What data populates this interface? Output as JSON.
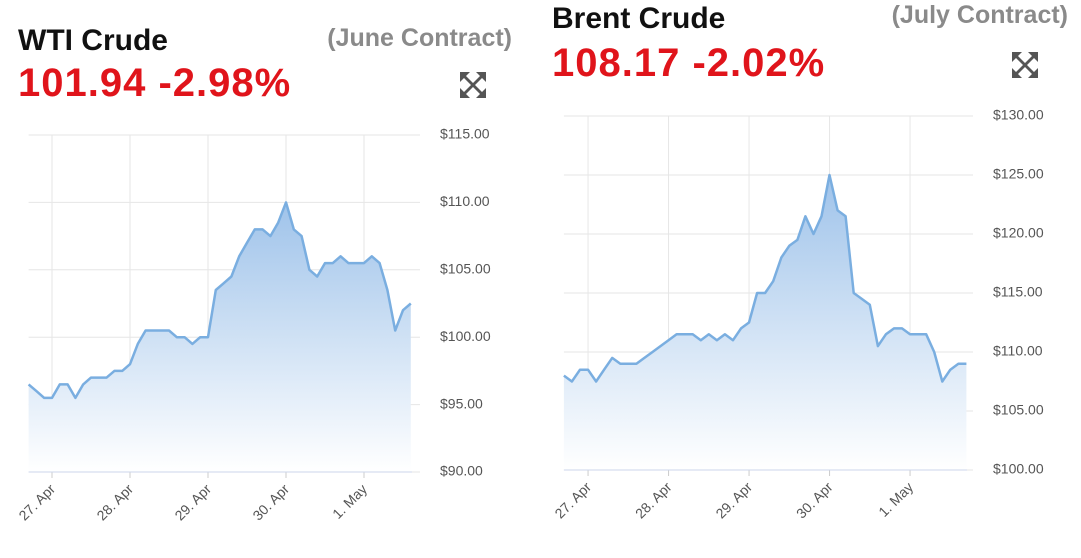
{
  "chart_data": [
    {
      "type": "area",
      "title": "WTI Crude",
      "subtitle": "(June Contract)",
      "annotation": "101.94 -2.98%",
      "color": "#7aaee0",
      "grid": true,
      "categories": [
        null,
        null,
        null,
        "27. Apr",
        null,
        null,
        null,
        null,
        null,
        null,
        null,
        null,
        null,
        "28. Apr",
        null,
        null,
        null,
        null,
        null,
        null,
        null,
        null,
        null,
        "29. Apr",
        null,
        null,
        null,
        null,
        null,
        null,
        null,
        null,
        null,
        "30. Apr",
        null,
        null,
        null,
        null,
        null,
        null,
        null,
        null,
        null,
        "1. May",
        null,
        null,
        null,
        null,
        null,
        null
      ],
      "values": [
        96.5,
        96,
        95.5,
        95.5,
        96.5,
        96.5,
        95.5,
        96.5,
        97,
        97,
        97,
        97.5,
        97.5,
        98,
        99.5,
        100.5,
        100.5,
        100.5,
        100.5,
        100,
        100,
        99.5,
        100,
        100,
        103.5,
        104,
        104.5,
        106,
        107,
        108,
        108,
        107.5,
        108.5,
        110,
        108,
        107.5,
        105,
        104.5,
        105.5,
        105.5,
        106,
        105.5,
        105.5,
        105.5,
        106,
        105.5,
        103.5,
        100.5,
        102,
        102.5
      ],
      "ylim": [
        90,
        115
      ],
      "yticks": [
        {
          "value": 90,
          "label": "$90.00"
        },
        {
          "value": 95,
          "label": "$95.00"
        },
        {
          "value": 100,
          "label": "$100.00"
        },
        {
          "value": 105,
          "label": "$105.00"
        },
        {
          "value": 110,
          "label": "$110.00"
        },
        {
          "value": 115,
          "label": "$115.00"
        }
      ]
    },
    {
      "type": "area",
      "title": "Brent Crude",
      "subtitle": "(July Contract)",
      "annotation": "108.17 -2.02%",
      "color": "#7aaee0",
      "grid": true,
      "categories": [
        null,
        null,
        null,
        "27. Apr",
        null,
        null,
        null,
        null,
        null,
        null,
        null,
        null,
        null,
        "28. Apr",
        null,
        null,
        null,
        null,
        null,
        null,
        null,
        null,
        null,
        "29. Apr",
        null,
        null,
        null,
        null,
        null,
        null,
        null,
        null,
        null,
        "30. Apr",
        null,
        null,
        null,
        null,
        null,
        null,
        null,
        null,
        null,
        "1. May",
        null,
        null,
        null,
        null,
        null,
        null,
        null
      ],
      "values": [
        108,
        107.5,
        108.5,
        108.5,
        107.5,
        108.5,
        109.5,
        109,
        109,
        109,
        109.5,
        110,
        110.5,
        111,
        111.5,
        111.5,
        111.5,
        111,
        111.5,
        111,
        111.5,
        111,
        112,
        112.5,
        115,
        115,
        116,
        118,
        119,
        119.5,
        121.5,
        120,
        121.5,
        125,
        122,
        121.5,
        115,
        114.5,
        114,
        110.5,
        111.5,
        112,
        112,
        111.5,
        111.5,
        111.5,
        110,
        107.5,
        108.5,
        109,
        109
      ],
      "ylim": [
        100,
        130
      ],
      "yticks": [
        {
          "value": 100,
          "label": "$100.00"
        },
        {
          "value": 105,
          "label": "$105.00"
        },
        {
          "value": 110,
          "label": "$110.00"
        },
        {
          "value": 115,
          "label": "$115.00"
        },
        {
          "value": 120,
          "label": "$120.00"
        },
        {
          "value": 125,
          "label": "$125.00"
        },
        {
          "value": 130,
          "label": "$130.00"
        }
      ]
    }
  ]
}
